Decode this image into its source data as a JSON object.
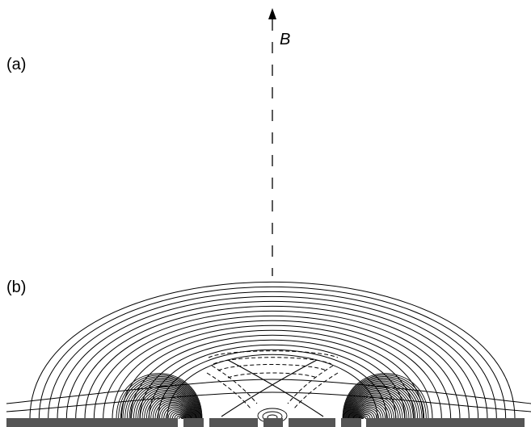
{
  "labels": {
    "panel_a": "(a)",
    "panel_b": "(b)",
    "field_axis": "B"
  },
  "colors": {
    "ink": "#000000",
    "electrode": "#555555",
    "background": "#ffffff"
  }
}
